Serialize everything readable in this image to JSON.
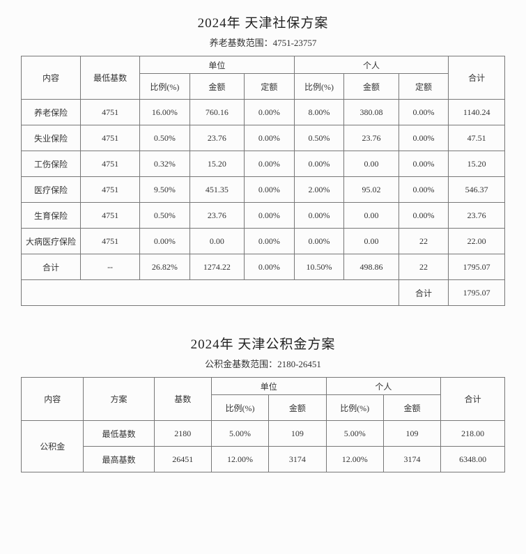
{
  "shebao": {
    "title": "2024年 天津社保方案",
    "subtitle": "养老基数范围：4751-23757",
    "headers": {
      "content": "内容",
      "minBase": "最低基数",
      "company": "单位",
      "personal": "个人",
      "total": "合计",
      "ratio": "比例(%)",
      "amount": "金额",
      "fixed": "定额"
    },
    "rows": [
      {
        "name": "养老保险",
        "base": "4751",
        "cr": "16.00%",
        "ca": "760.16",
        "cf": "0.00%",
        "pr": "8.00%",
        "pa": "380.08",
        "pf": "0.00%",
        "total": "1140.24"
      },
      {
        "name": "失业保险",
        "base": "4751",
        "cr": "0.50%",
        "ca": "23.76",
        "cf": "0.00%",
        "pr": "0.50%",
        "pa": "23.76",
        "pf": "0.00%",
        "total": "47.51"
      },
      {
        "name": "工伤保险",
        "base": "4751",
        "cr": "0.32%",
        "ca": "15.20",
        "cf": "0.00%",
        "pr": "0.00%",
        "pa": "0.00",
        "pf": "0.00%",
        "total": "15.20"
      },
      {
        "name": "医疗保险",
        "base": "4751",
        "cr": "9.50%",
        "ca": "451.35",
        "cf": "0.00%",
        "pr": "2.00%",
        "pa": "95.02",
        "pf": "0.00%",
        "total": "546.37"
      },
      {
        "name": "生育保险",
        "base": "4751",
        "cr": "0.50%",
        "ca": "23.76",
        "cf": "0.00%",
        "pr": "0.00%",
        "pa": "0.00",
        "pf": "0.00%",
        "total": "23.76"
      },
      {
        "name": "大病医疗保险",
        "base": "4751",
        "cr": "0.00%",
        "ca": "0.00",
        "cf": "0.00%",
        "pr": "0.00%",
        "pa": "0.00",
        "pf": "22",
        "total": "22.00"
      }
    ],
    "sumRow": {
      "name": "合计",
      "base": "--",
      "cr": "26.82%",
      "ca": "1274.22",
      "cf": "0.00%",
      "pr": "10.50%",
      "pa": "498.86",
      "pf": "22",
      "total": "1795.07"
    },
    "grandLabel": "合计",
    "grandTotal": "1795.07"
  },
  "gjj": {
    "title": "2024年 天津公积金方案",
    "subtitle": "公积金基数范围：2180-26451",
    "headers": {
      "content": "内容",
      "plan": "方案",
      "base": "基数",
      "company": "单位",
      "personal": "个人",
      "total": "合计",
      "ratio": "比例(%)",
      "amount": "金额"
    },
    "rowLabel": "公积金",
    "rows": [
      {
        "plan": "最低基数",
        "base": "2180",
        "cr": "5.00%",
        "ca": "109",
        "pr": "5.00%",
        "pa": "109",
        "total": "218.00"
      },
      {
        "plan": "最高基数",
        "base": "26451",
        "cr": "12.00%",
        "ca": "3174",
        "pr": "12.00%",
        "pa": "3174",
        "total": "6348.00"
      }
    ]
  }
}
